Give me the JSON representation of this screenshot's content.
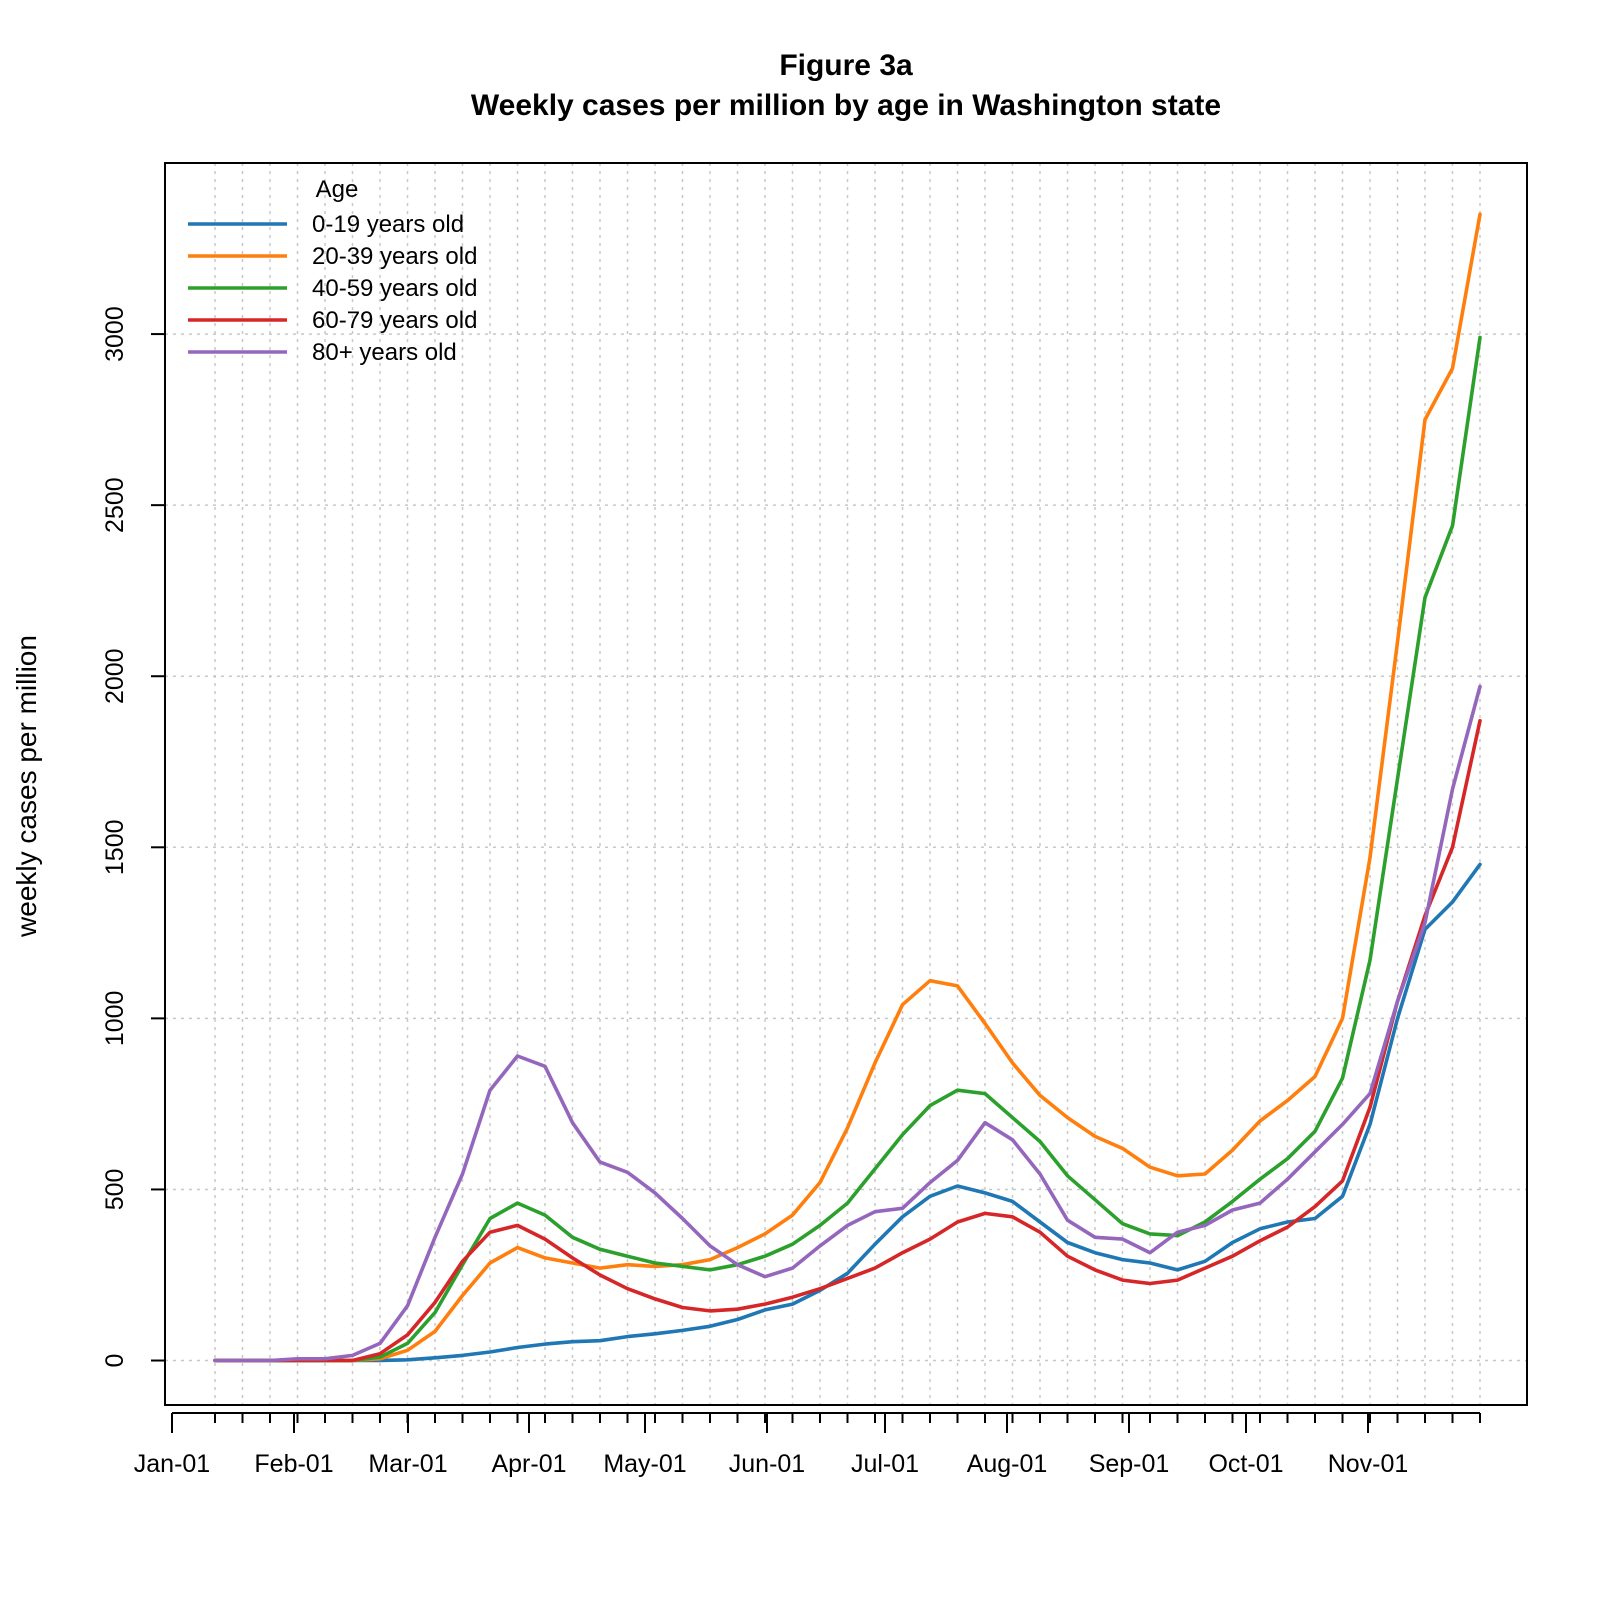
{
  "chart_data": {
    "type": "line",
    "title": "Figure 3a",
    "subtitle": "Weekly cases per million by age in Washington state",
    "xlabel": "",
    "ylabel": "weekly cases per million",
    "x_tick_labels": [
      "Jan-01",
      "Feb-01",
      "Mar-01",
      "Apr-01",
      "May-01",
      "Jun-01",
      "Jul-01",
      "Aug-01",
      "Sep-01",
      "Oct-01",
      "Nov-01"
    ],
    "y_ticks": [
      0,
      500,
      1000,
      1500,
      2000,
      2500,
      3000
    ],
    "ylim": [
      -130,
      3500
    ],
    "grid": true,
    "legend": {
      "title": "Age",
      "position": "top-left"
    },
    "weeks": [
      "Jan-12",
      "Jan-19",
      "Jan-26",
      "Feb-02",
      "Feb-09",
      "Feb-16",
      "Feb-23",
      "Mar-01",
      "Mar-08",
      "Mar-15",
      "Mar-22",
      "Mar-29",
      "Apr-05",
      "Apr-12",
      "Apr-19",
      "Apr-26",
      "May-03",
      "May-10",
      "May-17",
      "May-24",
      "May-31",
      "Jun-07",
      "Jun-14",
      "Jun-21",
      "Jun-28",
      "Jul-05",
      "Jul-12",
      "Jul-19",
      "Jul-26",
      "Aug-02",
      "Aug-09",
      "Aug-16",
      "Aug-23",
      "Aug-30",
      "Sep-06",
      "Sep-13",
      "Sep-20",
      "Sep-27",
      "Oct-04",
      "Oct-11",
      "Oct-18",
      "Oct-25",
      "Nov-01",
      "Nov-08",
      "Nov-15",
      "Nov-22",
      "Nov-29"
    ],
    "series": [
      {
        "name": "0-19 years old",
        "color": "#1f77b4",
        "values": [
          0,
          0,
          0,
          0,
          0,
          0,
          0,
          2,
          8,
          15,
          25,
          38,
          48,
          55,
          58,
          70,
          78,
          88,
          100,
          120,
          148,
          165,
          205,
          255,
          340,
          420,
          480,
          510,
          490,
          465,
          405,
          345,
          315,
          295,
          285,
          265,
          290,
          345,
          385,
          405,
          415,
          480,
          690,
          1000,
          1260,
          1340,
          1450
        ]
      },
      {
        "name": "20-39 years old",
        "color": "#ff7f0e",
        "values": [
          0,
          0,
          0,
          0,
          0,
          0,
          5,
          30,
          85,
          190,
          285,
          330,
          300,
          285,
          270,
          280,
          275,
          280,
          295,
          330,
          370,
          425,
          520,
          680,
          870,
          1040,
          1110,
          1095,
          985,
          870,
          775,
          710,
          655,
          620,
          565,
          540,
          545,
          615,
          700,
          760,
          830,
          1000,
          1470,
          2100,
          2750,
          2900,
          3350
        ]
      },
      {
        "name": "40-59 years old",
        "color": "#2ca02c",
        "values": [
          0,
          0,
          0,
          0,
          0,
          0,
          10,
          50,
          140,
          280,
          415,
          460,
          425,
          360,
          325,
          305,
          285,
          275,
          265,
          280,
          305,
          340,
          395,
          460,
          560,
          660,
          745,
          790,
          780,
          710,
          640,
          540,
          470,
          400,
          370,
          365,
          405,
          465,
          530,
          590,
          670,
          825,
          1170,
          1700,
          2230,
          2440,
          2990
        ]
      },
      {
        "name": "60-79 years old",
        "color": "#d62728",
        "values": [
          0,
          0,
          0,
          0,
          0,
          0,
          20,
          75,
          170,
          290,
          375,
          395,
          355,
          300,
          250,
          210,
          180,
          155,
          145,
          150,
          165,
          185,
          210,
          240,
          270,
          315,
          355,
          405,
          430,
          420,
          375,
          305,
          265,
          235,
          225,
          235,
          270,
          305,
          350,
          390,
          450,
          525,
          740,
          1050,
          1300,
          1500,
          1870
        ]
      },
      {
        "name": "80+ years old",
        "color": "#9467bd",
        "values": [
          0,
          0,
          0,
          5,
          5,
          15,
          50,
          160,
          360,
          545,
          790,
          890,
          860,
          695,
          580,
          550,
          490,
          415,
          335,
          280,
          245,
          270,
          335,
          395,
          435,
          445,
          520,
          585,
          695,
          645,
          545,
          410,
          360,
          355,
          315,
          375,
          395,
          440,
          460,
          530,
          610,
          690,
          780,
          1050,
          1280,
          1670,
          1970
        ]
      }
    ]
  }
}
